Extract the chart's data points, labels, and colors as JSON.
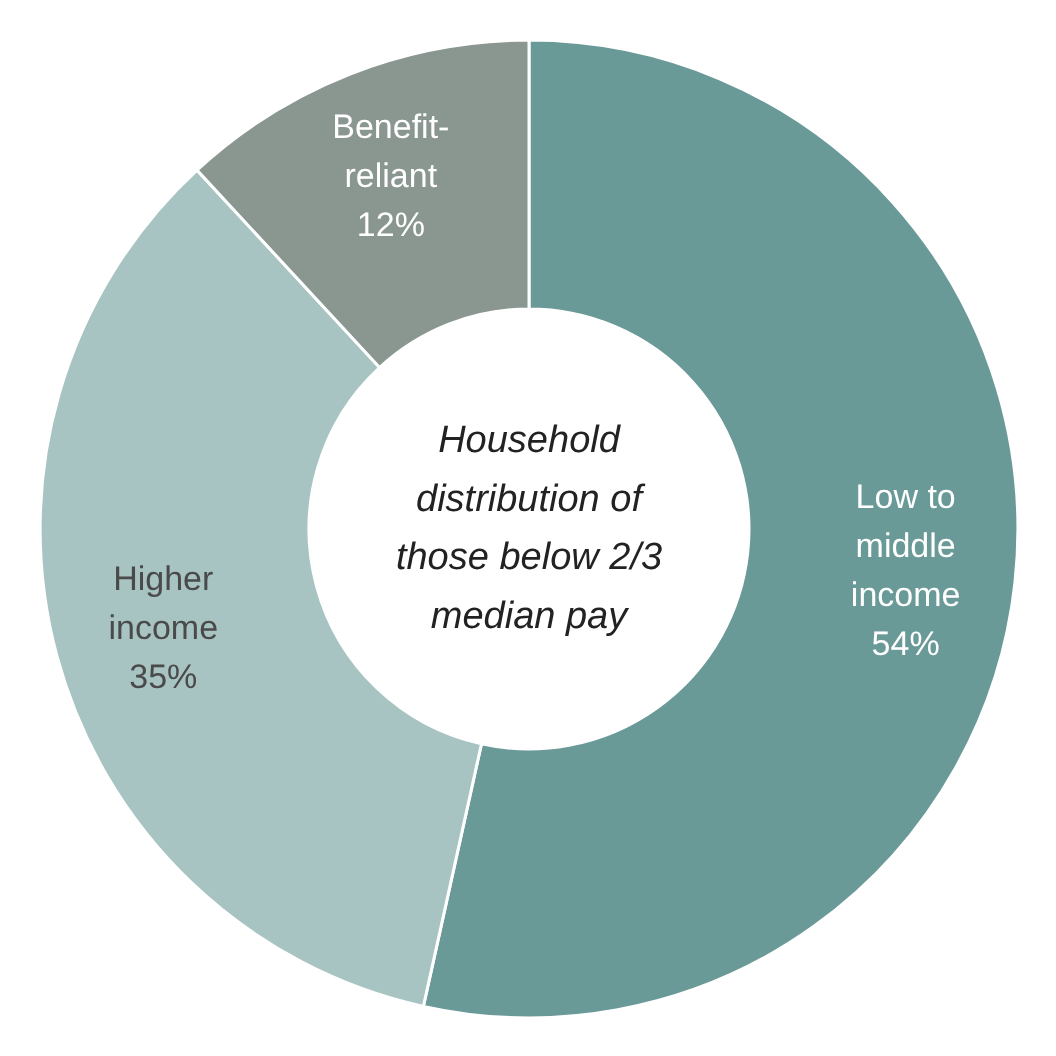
{
  "chart_data": {
    "type": "donut",
    "categories": [
      "Low to middle income",
      "Higher income",
      "Benefit-reliant"
    ],
    "values": [
      54,
      35,
      12
    ],
    "colors": [
      "#6a9a98",
      "#a8c4c2",
      "#8a9690"
    ],
    "value_labels": [
      "54%",
      "35%",
      "12%"
    ],
    "annotations": [
      "Household distribution of those below 2/3 median pay"
    ]
  }
}
